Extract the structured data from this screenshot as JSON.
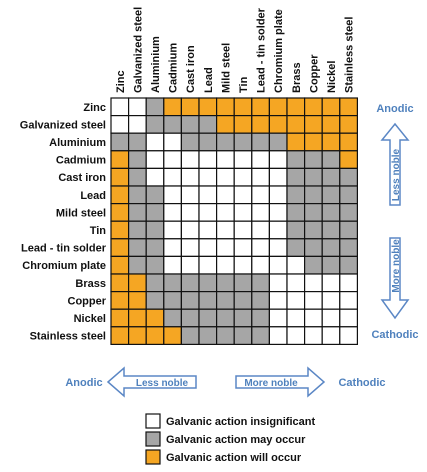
{
  "metals": [
    "Zinc",
    "Galvanized steel",
    "Aluminium",
    "Cadmium",
    "Cast iron",
    "Lead",
    "Mild steel",
    "Tin",
    "Lead - tin solder",
    "Chromium plate",
    "Brass",
    "Copper",
    "Nickel",
    "Stainless steel"
  ],
  "colors": {
    "insignificant": "#ffffff",
    "may_occur": "#a6a6a6",
    "will_occur": "#f5a623",
    "border": "#111111",
    "arrow": "#5b87c5",
    "arrow_text": "#4f81bd"
  },
  "matrix": [
    "IIMWWWWWWWWWWW",
    "IIMMMMWWWWWWWW",
    "MMIIMMMMMMWWWW",
    "WMIIIIIIIIMMMW",
    "WMIIIIIIIIMMMM",
    "WMMIIIIIIIMMMM",
    "WMMIIIIIIIMMMM",
    "WMMIIIIIIIMMMM",
    "WMMIIIIIIIMMMM",
    "WMMIIIIIIIIMMM",
    "WWMMMMMMMIIIII",
    "WWMMMMMMMIIIII",
    "WWWMMMMMMIIIII",
    "WWWWMMMMMIIIII"
  ],
  "side_labels": {
    "anodic": "Anodic",
    "less_noble": "Less noble",
    "more_noble": "More noble",
    "cathodic": "Cathodic"
  },
  "bottom_labels": {
    "anodic": "Anodic",
    "less_noble": "Less noble",
    "more_noble": "More noble",
    "cathodic": "Cathodic"
  },
  "legend": [
    {
      "key": "I",
      "label": "Galvanic action insignificant"
    },
    {
      "key": "M",
      "label": "Galvanic action may occur"
    },
    {
      "key": "W",
      "label": "Galvanic action will occur"
    }
  ]
}
